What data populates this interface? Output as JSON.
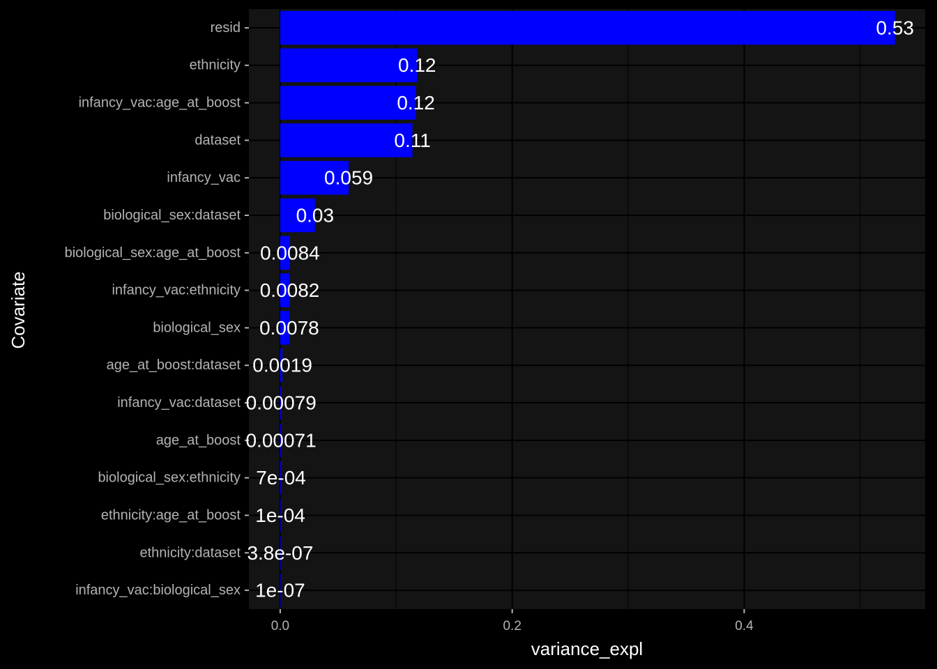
{
  "chart_data": {
    "type": "bar",
    "orientation": "horizontal",
    "xlabel": "variance_expl",
    "ylabel": "Covariate",
    "xlim": [
      -0.027,
      0.556
    ],
    "x_ticks": [
      0,
      0.2,
      0.4
    ],
    "x_tick_labels": [
      "0.0",
      "0.2",
      "0.4"
    ],
    "grid": true,
    "bar_color": "#0000ff",
    "panel_color": "#141414",
    "background_color": "#000000",
    "categories": [
      "resid",
      "ethnicity",
      "infancy_vac:age_at_boost",
      "dataset",
      "infancy_vac",
      "biological_sex:dataset",
      "biological_sex:age_at_boost",
      "infancy_vac:ethnicity",
      "biological_sex",
      "age_at_boost:dataset",
      "infancy_vac:dataset",
      "age_at_boost",
      "biological_sex:ethnicity",
      "ethnicity:age_at_boost",
      "ethnicity:dataset",
      "infancy_vac:biological_sex"
    ],
    "values": [
      0.53,
      0.118,
      0.117,
      0.114,
      0.059,
      0.03,
      0.0084,
      0.0082,
      0.0078,
      0.0019,
      0.00079,
      0.00071,
      0.0007,
      0.0001,
      3.8e-07,
      1e-07
    ],
    "data_labels": [
      "0.53",
      "0.12",
      "0.12",
      "0.11",
      "0.059",
      "0.03",
      "0.0084",
      "0.0082",
      "0.0078",
      "0.0019",
      "0.00079",
      "0.00071",
      "7e-04",
      "1e-04",
      "3.8e-07",
      "1e-07"
    ]
  }
}
